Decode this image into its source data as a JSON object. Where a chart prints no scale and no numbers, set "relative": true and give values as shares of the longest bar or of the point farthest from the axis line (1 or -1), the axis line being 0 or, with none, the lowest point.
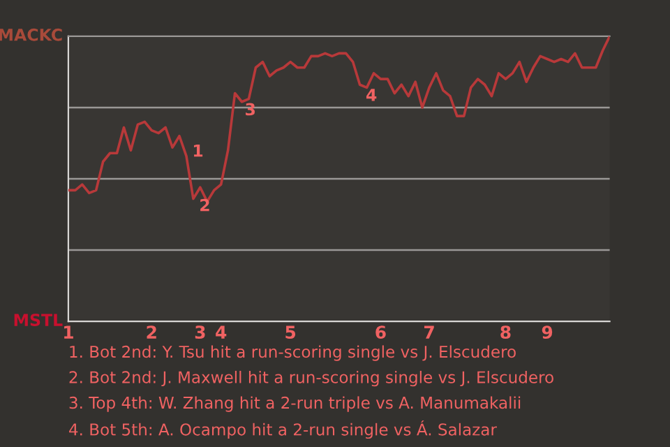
{
  "chart_data": {
    "type": "line",
    "relative": true,
    "categories": [
      "1",
      null,
      null,
      null,
      null,
      null,
      null,
      null,
      null,
      null,
      null,
      null,
      "2",
      null,
      null,
      null,
      null,
      null,
      null,
      "3",
      null,
      null,
      "4",
      null,
      null,
      null,
      null,
      null,
      null,
      null,
      null,
      null,
      "5",
      null,
      null,
      null,
      null,
      null,
      null,
      null,
      null,
      null,
      null,
      null,
      null,
      "6",
      null,
      null,
      null,
      null,
      null,
      null,
      "7",
      null,
      null,
      null,
      null,
      null,
      null,
      null,
      null,
      null,
      null,
      "8",
      null,
      null,
      null,
      null,
      null,
      "9",
      null,
      null,
      null,
      null,
      null,
      null,
      null,
      null,
      null
    ],
    "series": [
      {
        "color": "#b8393a",
        "values": [
          0.46,
          0.46,
          0.48,
          0.45,
          0.46,
          0.56,
          0.59,
          0.59,
          0.68,
          0.6,
          0.69,
          0.7,
          0.67,
          0.66,
          0.68,
          0.61,
          0.65,
          0.58,
          0.43,
          0.47,
          0.42,
          0.46,
          0.48,
          0.6,
          0.8,
          0.77,
          0.78,
          0.89,
          0.91,
          0.86,
          0.88,
          0.89,
          0.91,
          0.89,
          0.89,
          0.93,
          0.93,
          0.94,
          0.93,
          0.94,
          0.94,
          0.91,
          0.83,
          0.82,
          0.87,
          0.85,
          0.85,
          0.8,
          0.83,
          0.79,
          0.84,
          0.75,
          0.82,
          0.87,
          0.81,
          0.79,
          0.72,
          0.72,
          0.82,
          0.85,
          0.83,
          0.79,
          0.87,
          0.85,
          0.87,
          0.91,
          0.84,
          0.89,
          0.93,
          0.92,
          0.91,
          0.92,
          0.91,
          0.94,
          0.89,
          0.89,
          0.89,
          0.95,
          1.0
        ]
      }
    ],
    "grid": "y",
    "annotations": [
      "1",
      "2",
      "3",
      "4",
      "MACKC",
      "MSTL",
      "1. Bot 2nd: Y. Tsu hit a run-scoring single vs J. Elscudero",
      "2. Bot 2nd: J. Maxwell hit a run-scoring single vs J. Elscudero",
      "3. Top 4th: W. Zhang hit a 2-run triple vs A. Manumakalii",
      "4. Bot 5th: A. Ocampo hit a 2-run single vs Á. Salazar"
    ]
  }
}
